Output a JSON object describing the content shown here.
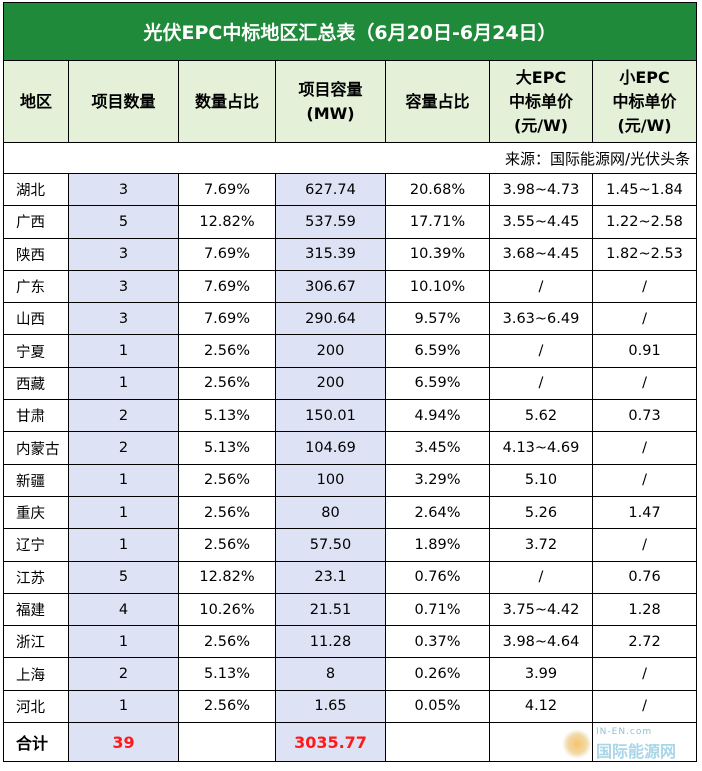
{
  "title": "光伏EPC中标地区汇总表（6月20日-6月24日）",
  "headers": {
    "region": "地区",
    "count": "项目数量",
    "count_ratio": "数量占比",
    "capacity_l1": "项目容量",
    "capacity_l2": "(MW)",
    "capacity_ratio": "容量占比",
    "big_l1": "大EPC",
    "big_l2": "中标单价",
    "big_l3": "(元/W)",
    "small_l1": "小EPC",
    "small_l2": "中标单价",
    "small_l3": "(元/W)"
  },
  "source": "来源：国际能源网/光伏头条",
  "rows": [
    {
      "region": "湖北",
      "count": "3",
      "count_ratio": "7.69%",
      "capacity": "627.74",
      "capacity_ratio": "20.68%",
      "big": "3.98~4.73",
      "small": "1.45~1.84"
    },
    {
      "region": "广西",
      "count": "5",
      "count_ratio": "12.82%",
      "capacity": "537.59",
      "capacity_ratio": "17.71%",
      "big": "3.55~4.45",
      "small": "1.22~2.58"
    },
    {
      "region": "陕西",
      "count": "3",
      "count_ratio": "7.69%",
      "capacity": "315.39",
      "capacity_ratio": "10.39%",
      "big": "3.68~4.45",
      "small": "1.82~2.53"
    },
    {
      "region": "广东",
      "count": "3",
      "count_ratio": "7.69%",
      "capacity": "306.67",
      "capacity_ratio": "10.10%",
      "big": "/",
      "small": "/"
    },
    {
      "region": "山西",
      "count": "3",
      "count_ratio": "7.69%",
      "capacity": "290.64",
      "capacity_ratio": "9.57%",
      "big": "3.63~6.49",
      "small": "/"
    },
    {
      "region": "宁夏",
      "count": "1",
      "count_ratio": "2.56%",
      "capacity": "200",
      "capacity_ratio": "6.59%",
      "big": "/",
      "small": "0.91"
    },
    {
      "region": "西藏",
      "count": "1",
      "count_ratio": "2.56%",
      "capacity": "200",
      "capacity_ratio": "6.59%",
      "big": "/",
      "small": "/"
    },
    {
      "region": "甘肃",
      "count": "2",
      "count_ratio": "5.13%",
      "capacity": "150.01",
      "capacity_ratio": "4.94%",
      "big": "5.62",
      "small": "0.73"
    },
    {
      "region": "内蒙古",
      "count": "2",
      "count_ratio": "5.13%",
      "capacity": "104.69",
      "capacity_ratio": "3.45%",
      "big": "4.13~4.69",
      "small": "/"
    },
    {
      "region": "新疆",
      "count": "1",
      "count_ratio": "2.56%",
      "capacity": "100",
      "capacity_ratio": "3.29%",
      "big": "5.10",
      "small": "/"
    },
    {
      "region": "重庆",
      "count": "1",
      "count_ratio": "2.56%",
      "capacity": "80",
      "capacity_ratio": "2.64%",
      "big": "5.26",
      "small": "1.47"
    },
    {
      "region": "辽宁",
      "count": "1",
      "count_ratio": "2.56%",
      "capacity": "57.50",
      "capacity_ratio": "1.89%",
      "big": "3.72",
      "small": "/"
    },
    {
      "region": "江苏",
      "count": "5",
      "count_ratio": "12.82%",
      "capacity": "23.1",
      "capacity_ratio": "0.76%",
      "big": "/",
      "small": "0.76"
    },
    {
      "region": "福建",
      "count": "4",
      "count_ratio": "10.26%",
      "capacity": "21.51",
      "capacity_ratio": "0.71%",
      "big": "3.75~4.42",
      "small": "1.28"
    },
    {
      "region": "浙江",
      "count": "1",
      "count_ratio": "2.56%",
      "capacity": "11.28",
      "capacity_ratio": "0.37%",
      "big": "3.98~4.64",
      "small": "2.72"
    },
    {
      "region": "上海",
      "count": "2",
      "count_ratio": "5.13%",
      "capacity": "8",
      "capacity_ratio": "0.26%",
      "big": "3.99",
      "small": "/"
    },
    {
      "region": "河北",
      "count": "1",
      "count_ratio": "2.56%",
      "capacity": "1.65",
      "capacity_ratio": "0.05%",
      "big": "4.12",
      "small": "/"
    }
  ],
  "total": {
    "label": "合计",
    "count": "39",
    "capacity": "3035.77"
  },
  "watermark": {
    "top": "IN-EN.com",
    "bottom": "国际能源网"
  },
  "colors": {
    "title_bg": "#1f8a3a",
    "header_bg": "#e4f0d8",
    "shade": "#dde3f4",
    "total_red": "#ff1a1a"
  }
}
